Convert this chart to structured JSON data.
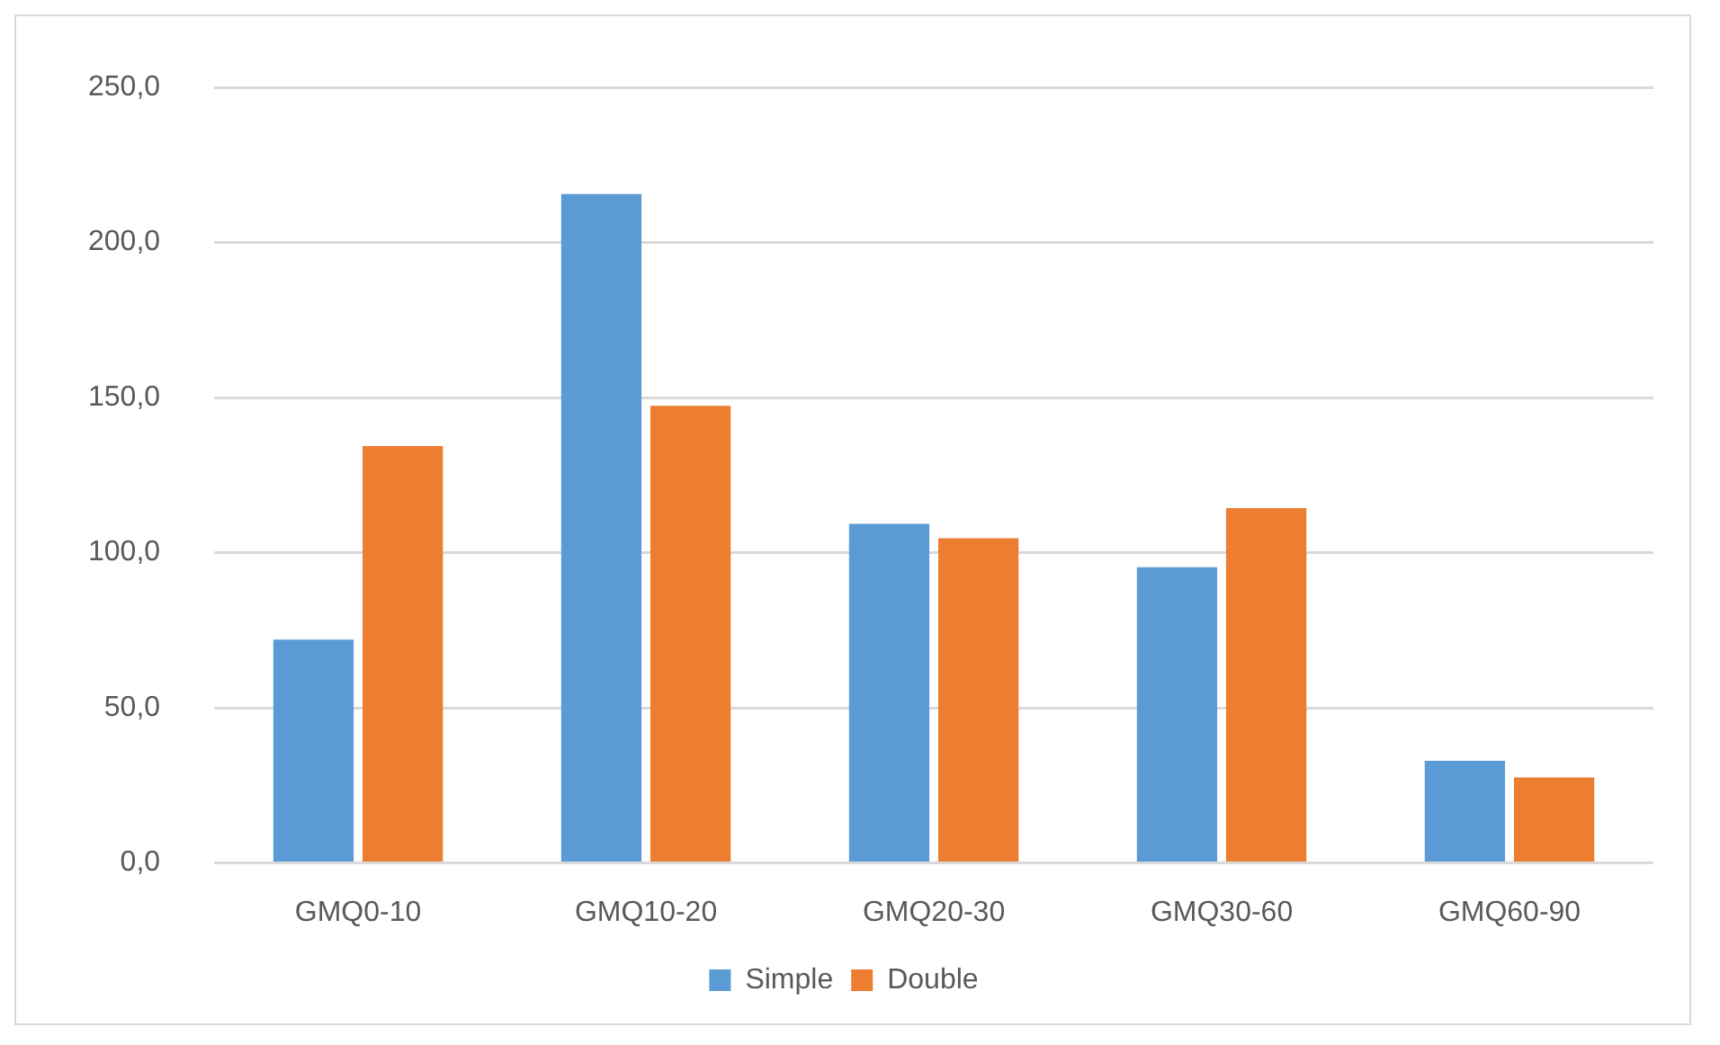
{
  "chart_data": {
    "type": "bar",
    "categories": [
      "GMQ0-10",
      "GMQ10-20",
      "GMQ20-30",
      "GMQ30-60",
      "GMQ60-90"
    ],
    "series": [
      {
        "name": "Simple",
        "color": "#5b9bd5",
        "values": [
          72.0,
          215.6,
          109.3,
          95.3,
          32.9
        ]
      },
      {
        "name": "Double",
        "color": "#ed7d31",
        "values": [
          134.4,
          147.4,
          104.7,
          114.4,
          27.6
        ]
      }
    ],
    "ylim": [
      0,
      250
    ],
    "yticks": [
      {
        "value": 0,
        "label": "0,0"
      },
      {
        "value": 50,
        "label": "50,0"
      },
      {
        "value": 100,
        "label": "100,0"
      },
      {
        "value": 150,
        "label": "150,0"
      },
      {
        "value": 200,
        "label": "200,0"
      },
      {
        "value": 250,
        "label": "250,0"
      }
    ],
    "grid": "y",
    "legend": "bottom"
  }
}
